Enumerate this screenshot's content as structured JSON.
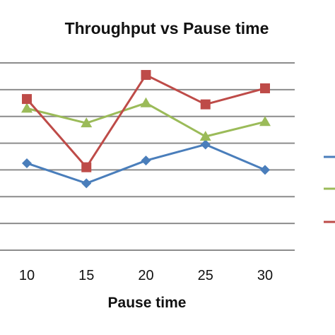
{
  "chart_data": {
    "type": "line",
    "title": "Throughput vs Pause time",
    "xlabel": "Pause time",
    "ylabel": "",
    "categories": [
      "10",
      "15",
      "20",
      "25",
      "30"
    ],
    "ylim": [
      0,
      7
    ],
    "grid": true,
    "legend": "right",
    "series": [
      {
        "color": "#4a7ebb",
        "marker": "diamond",
        "values": [
          3.25,
          2.5,
          3.35,
          3.95,
          3.0
        ]
      },
      {
        "color": "#9bbb59",
        "marker": "triangle",
        "values": [
          5.3,
          4.75,
          5.5,
          4.25,
          4.8
        ]
      },
      {
        "color": "#be4b48",
        "marker": "square",
        "values": [
          5.65,
          3.1,
          6.55,
          5.45,
          6.05
        ]
      }
    ]
  }
}
